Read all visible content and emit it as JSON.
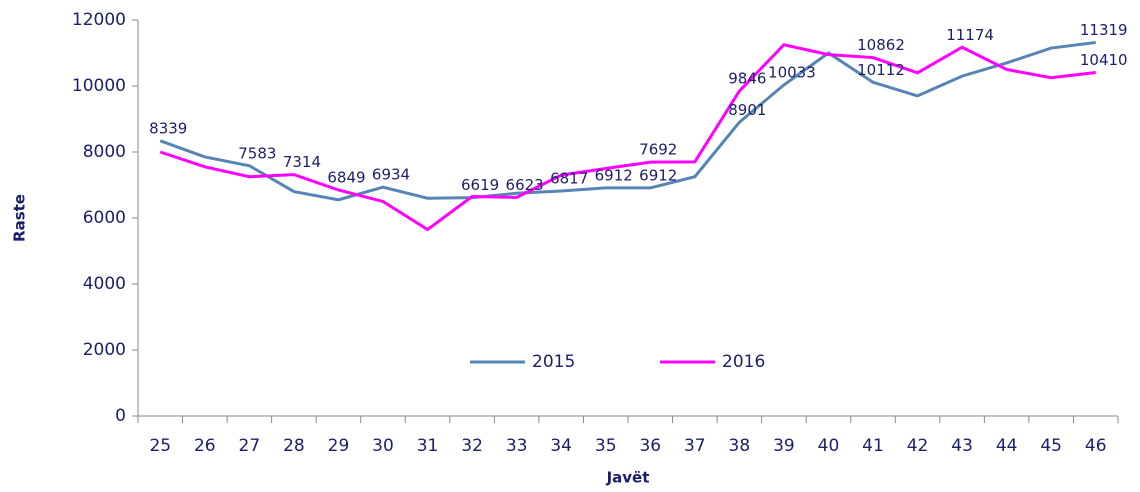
{
  "chart_data": {
    "type": "line",
    "x_label": "Javët",
    "y_label": "Raste",
    "categories": [
      "25",
      "26",
      "27",
      "28",
      "29",
      "30",
      "31",
      "32",
      "33",
      "34",
      "35",
      "36",
      "37",
      "38",
      "39",
      "40",
      "41",
      "42",
      "43",
      "44",
      "45",
      "46"
    ],
    "series": [
      {
        "name": "2015",
        "color": "#5585b5",
        "values": [
          8339,
          7850,
          7583,
          6800,
          6550,
          6934,
          6600,
          6619,
          6750,
          6817,
          6912,
          6912,
          7250,
          8901,
          10033,
          11000,
          10112,
          9700,
          10300,
          10700,
          11150,
          11319
        ],
        "value_labels": [
          "8339",
          null,
          "7583",
          null,
          null,
          "6934",
          null,
          "6619",
          null,
          "6817",
          "6912",
          "6912",
          null,
          "8901",
          "10033",
          null,
          "10112",
          null,
          null,
          null,
          null,
          "11319"
        ]
      },
      {
        "name": "2016",
        "color": "#ff00ff",
        "values": [
          8000,
          7550,
          7250,
          7314,
          6849,
          6500,
          5650,
          6650,
          6623,
          7300,
          7500,
          7692,
          7700,
          9846,
          11250,
          10950,
          10862,
          10400,
          11174,
          10500,
          10250,
          10410
        ],
        "value_labels": [
          null,
          null,
          null,
          "7314",
          "6849",
          null,
          null,
          null,
          "6623",
          null,
          null,
          "7692",
          null,
          "9846",
          null,
          null,
          "10862",
          null,
          "11174",
          null,
          null,
          "10410"
        ]
      }
    ],
    "ylim": [
      0,
      12000
    ],
    "yticks": [
      0,
      2000,
      4000,
      6000,
      8000,
      10000,
      12000
    ],
    "legend": "bottom-center"
  }
}
